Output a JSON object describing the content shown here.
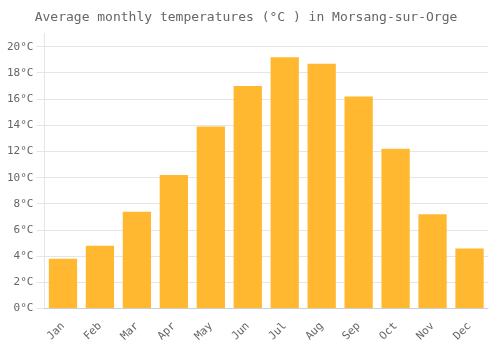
{
  "chart_data": {
    "type": "bar",
    "title": "Average monthly temperatures (°C ) in Morsang-sur-Orge",
    "categories": [
      "Jan",
      "Feb",
      "Mar",
      "Apr",
      "May",
      "Jun",
      "Jul",
      "Aug",
      "Sep",
      "Oct",
      "Nov",
      "Dec"
    ],
    "values": [
      3.8,
      4.8,
      7.4,
      10.2,
      13.9,
      17.0,
      19.2,
      18.7,
      16.2,
      12.2,
      7.2,
      4.6
    ],
    "color": "#FFB830",
    "ylim": [
      0,
      21
    ],
    "yticks": [
      {
        "value": 0,
        "label": "0°C"
      },
      {
        "value": 2,
        "label": "2°C"
      },
      {
        "value": 4,
        "label": "4°C"
      },
      {
        "value": 6,
        "label": "6°C"
      },
      {
        "value": 8,
        "label": "8°C"
      },
      {
        "value": 10,
        "label": "10°C"
      },
      {
        "value": 12,
        "label": "12°C"
      },
      {
        "value": 14,
        "label": "14°C"
      },
      {
        "value": 16,
        "label": "16°C"
      },
      {
        "value": 18,
        "label": "18°C"
      },
      {
        "value": 20,
        "label": "20°C"
      }
    ],
    "grid": true
  }
}
